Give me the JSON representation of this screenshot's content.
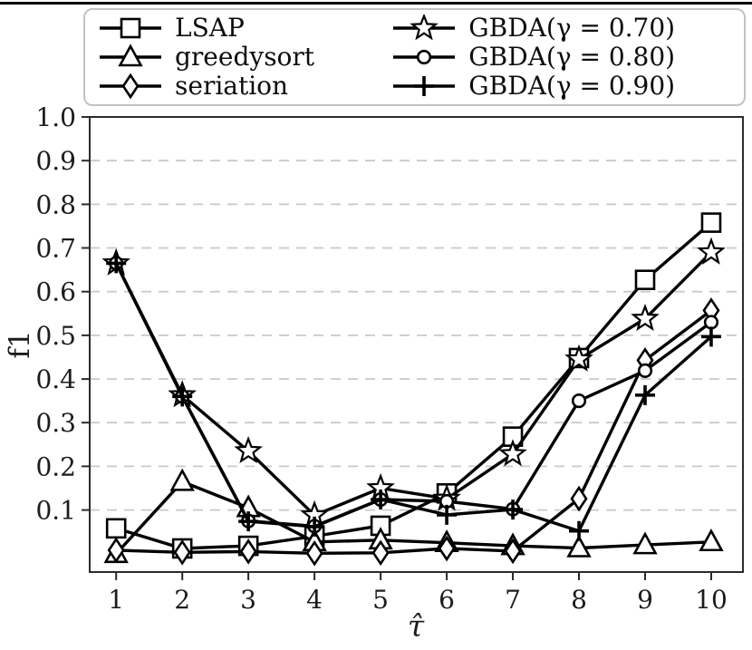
{
  "chart_data": {
    "type": "line",
    "title": "",
    "xlabel": "τ̂",
    "ylabel": "f1",
    "x": [
      1,
      2,
      3,
      4,
      5,
      6,
      7,
      8,
      9,
      10
    ],
    "xticks": [
      1,
      2,
      3,
      4,
      5,
      6,
      7,
      8,
      9,
      10
    ],
    "yticks": [
      0.1,
      0.2,
      0.3,
      0.4,
      0.5,
      0.6,
      0.7,
      0.8,
      0.9,
      1.0
    ],
    "xlim": [
      0.6,
      10.48
    ],
    "ylim": [
      -0.042,
      1.0
    ],
    "grid": "horizontal-dashed",
    "legend_position": "top-outside, 2 columns",
    "series": [
      {
        "name": "LSAP",
        "marker": "square",
        "values": [
          0.058,
          0.012,
          0.018,
          0.04,
          0.064,
          0.138,
          0.268,
          0.448,
          0.627,
          0.758
        ]
      },
      {
        "name": "greedysort",
        "marker": "triangle",
        "values": [
          0.0,
          0.165,
          0.105,
          0.027,
          0.031,
          0.025,
          0.018,
          0.013,
          0.02,
          0.027
        ]
      },
      {
        "name": "seriation",
        "marker": "diamond",
        "values": [
          0.008,
          0.003,
          0.005,
          0.001,
          0.002,
          0.012,
          0.006,
          0.126,
          0.443,
          0.557
        ]
      },
      {
        "name": "GBDA(γ = 0.70)",
        "marker": "star",
        "values": [
          0.665,
          0.363,
          0.235,
          0.088,
          0.15,
          0.126,
          0.228,
          0.445,
          0.538,
          0.69
        ]
      },
      {
        "name": "GBDA(γ = 0.80)",
        "marker": "circle",
        "values": [
          0.665,
          0.36,
          0.075,
          0.063,
          0.124,
          0.12,
          0.102,
          0.35,
          0.419,
          0.53
        ]
      },
      {
        "name": "GBDA(γ = 0.90)",
        "marker": "plus",
        "values": [
          0.665,
          0.36,
          0.074,
          0.062,
          0.124,
          0.089,
          0.101,
          0.052,
          0.363,
          0.497
        ]
      }
    ],
    "colors": {
      "line": "#000000",
      "marker_fill": "#ffffff",
      "grid": "#c9c9c9",
      "spine": "#2b2b2b",
      "tick_label": "#1c1c1c",
      "legend_border": "#c2c2c2",
      "background": "#ffffff"
    }
  }
}
